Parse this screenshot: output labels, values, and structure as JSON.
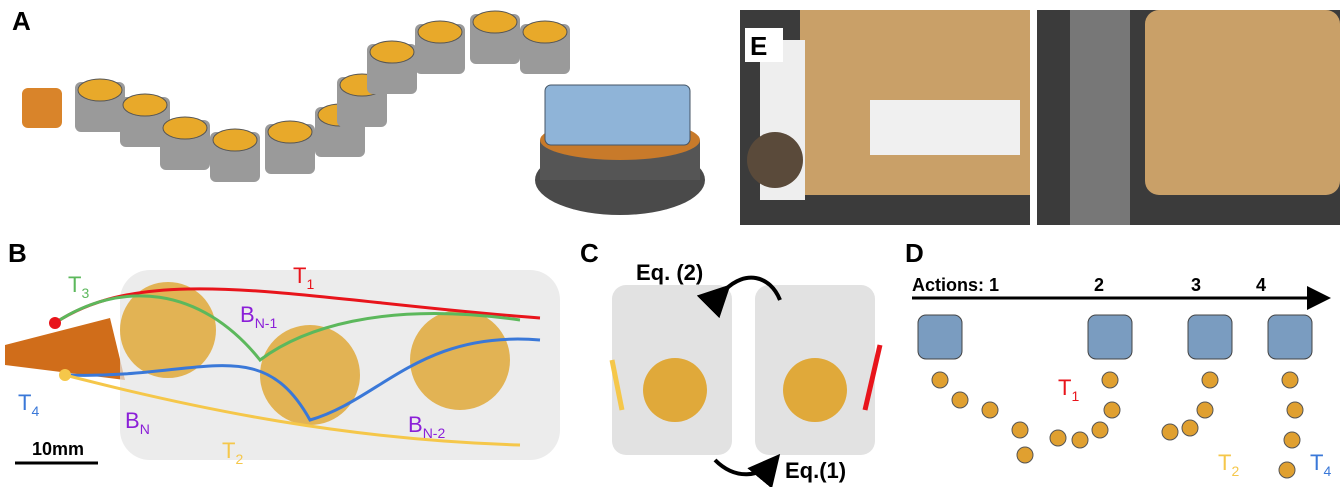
{
  "panels": {
    "a": {
      "label": "A"
    },
    "e": {
      "label": "E"
    },
    "b": {
      "label": "B",
      "labels": [
        {
          "main": "T",
          "sub": "3"
        },
        {
          "main": "T",
          "sub": "1"
        },
        {
          "main": "B",
          "sub": "N-1"
        },
        {
          "main": "T",
          "sub": "4"
        },
        {
          "main": "B",
          "sub": "N"
        },
        {
          "main": "B",
          "sub": "N-2"
        },
        {
          "main": "T",
          "sub": "2"
        }
      ],
      "scale_bar": "10mm"
    },
    "c": {
      "label": "C",
      "eq2": "Eq. (2)",
      "eq1": "Eq.(1)"
    },
    "d": {
      "label": "D",
      "axis": "Actions: 1",
      "steps": [
        "2",
        "3",
        "4"
      ],
      "torques": [
        {
          "main": "T",
          "sub": "1"
        },
        {
          "main": "T",
          "sub": "2"
        },
        {
          "main": "T",
          "sub": "4"
        }
      ]
    }
  }
}
